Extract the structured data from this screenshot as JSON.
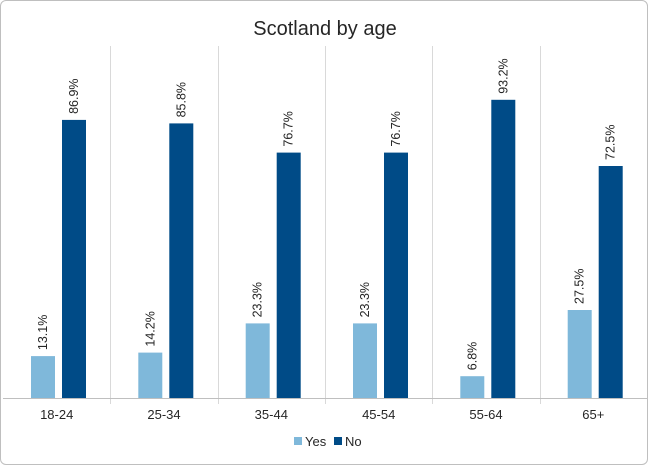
{
  "chart_data": {
    "type": "bar",
    "title": "Scotland by age",
    "xlabel": "",
    "ylabel": "",
    "categories": [
      "18-24",
      "25-34",
      "35-44",
      "45-54",
      "55-64",
      "65+"
    ],
    "series": [
      {
        "name": "Yes",
        "color": "#7fb8da",
        "values": [
          13.1,
          14.2,
          23.3,
          23.3,
          6.8,
          27.5
        ],
        "labels": [
          "13.1%",
          "14.2%",
          "23.3%",
          "23.3%",
          "6.8%",
          "27.5%"
        ]
      },
      {
        "name": "No",
        "color": "#004b87",
        "values": [
          86.9,
          85.8,
          76.7,
          76.7,
          93.2,
          72.5
        ],
        "labels": [
          "86.9%",
          "85.8%",
          "76.7%",
          "76.7%",
          "93.2%",
          "72.5%"
        ]
      }
    ],
    "ylim": [
      0,
      100
    ],
    "grid": false,
    "category_separators": true,
    "legend_position": "bottom"
  }
}
